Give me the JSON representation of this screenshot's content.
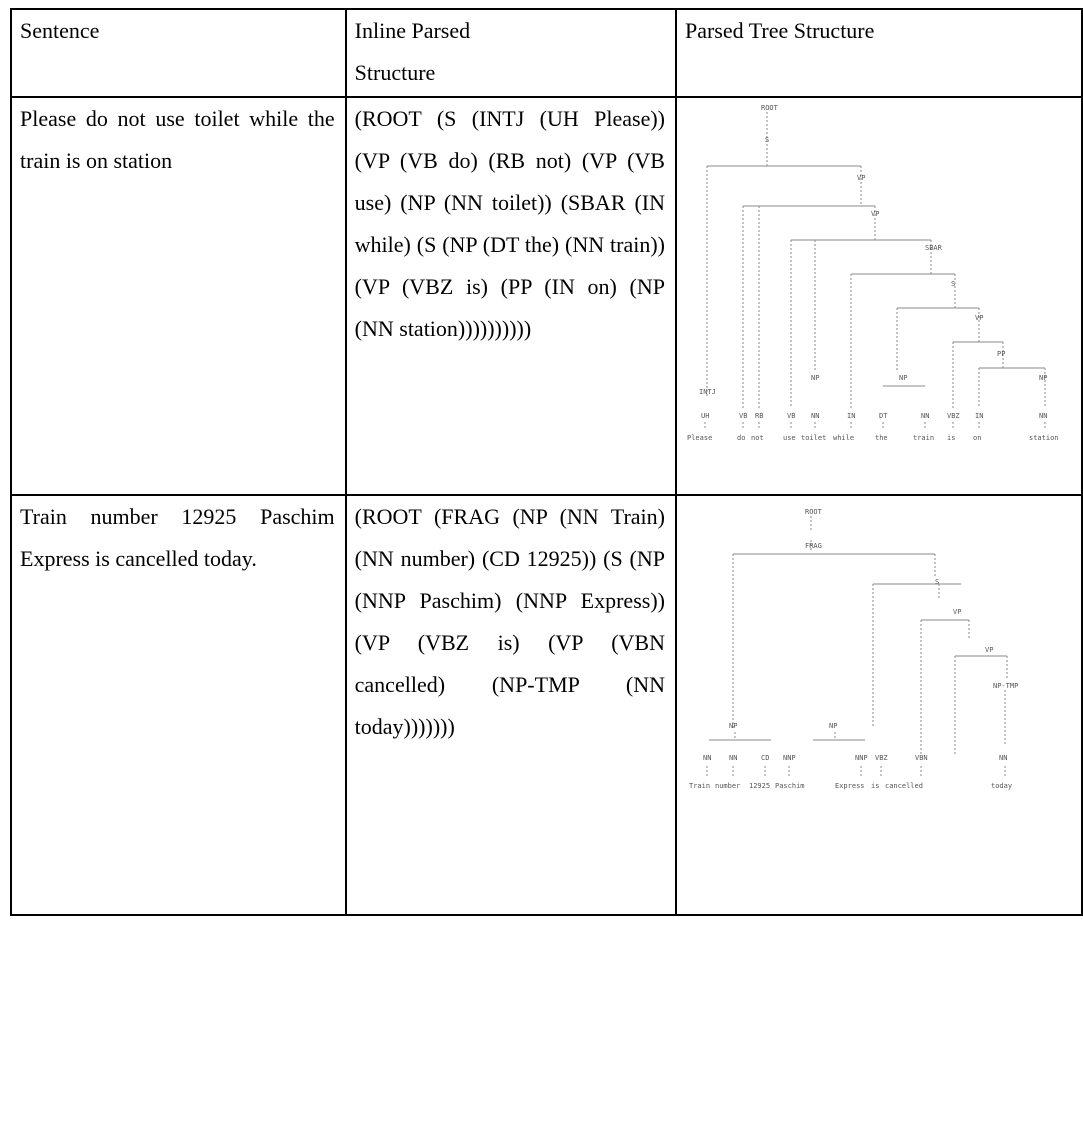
{
  "header": {
    "sentence": "Sentence",
    "inline_line1": "Inline Parsed",
    "inline_line2": "Structure",
    "tree": "Parsed Tree Structure"
  },
  "rows": [
    {
      "sentence": "Please do not use toilet while the train is on station",
      "inline": "(ROOT (S (INTJ (UH Please)) (VP (VB do) (RB not) (VP (VB use) (NP (NN toilet)) (SBAR (IN while) (S (NP (DT the) (NN train)) (VP (VBZ is) (PP (IN on) (NP (NN station))))))))))",
      "tree": {
        "nodes": [
          "ROOT",
          "S",
          "VP",
          "VP",
          "SBAR",
          "S",
          "VP",
          "PP",
          "INTJ",
          "NP",
          "NP",
          "NP"
        ],
        "tags": [
          "UH",
          "VB",
          "RB",
          "VB",
          "NN",
          "IN",
          "DT",
          "NN",
          "VBZ",
          "IN",
          "NN"
        ],
        "words": [
          "Please",
          "do",
          "not",
          "use",
          "toilet",
          "while",
          "the",
          "train",
          "is",
          "on",
          "station"
        ]
      }
    },
    {
      "sentence": "Train number 12925 Paschim Express is cancelled today.",
      "inline": "(ROOT (FRAG (NP (NN Train) (NN number) (CD 12925)) (S (NP (NNP Paschim) (NNP Express)) (VP (VBZ is) (VP (VBN cancelled) (NP-TMP (NN today)))))))",
      "tree": {
        "nodes": [
          "ROOT",
          "FRAG",
          "S",
          "VP",
          "VP",
          "NP-TMP",
          "NP",
          "NP"
        ],
        "tags": [
          "NN",
          "NN",
          "CD",
          "NNP",
          "NNP",
          "VBZ",
          "VBN",
          "NN"
        ],
        "words": [
          "Train",
          "number",
          "12925",
          "Paschim",
          "Express",
          "is",
          "cancelled",
          "today"
        ]
      }
    }
  ]
}
